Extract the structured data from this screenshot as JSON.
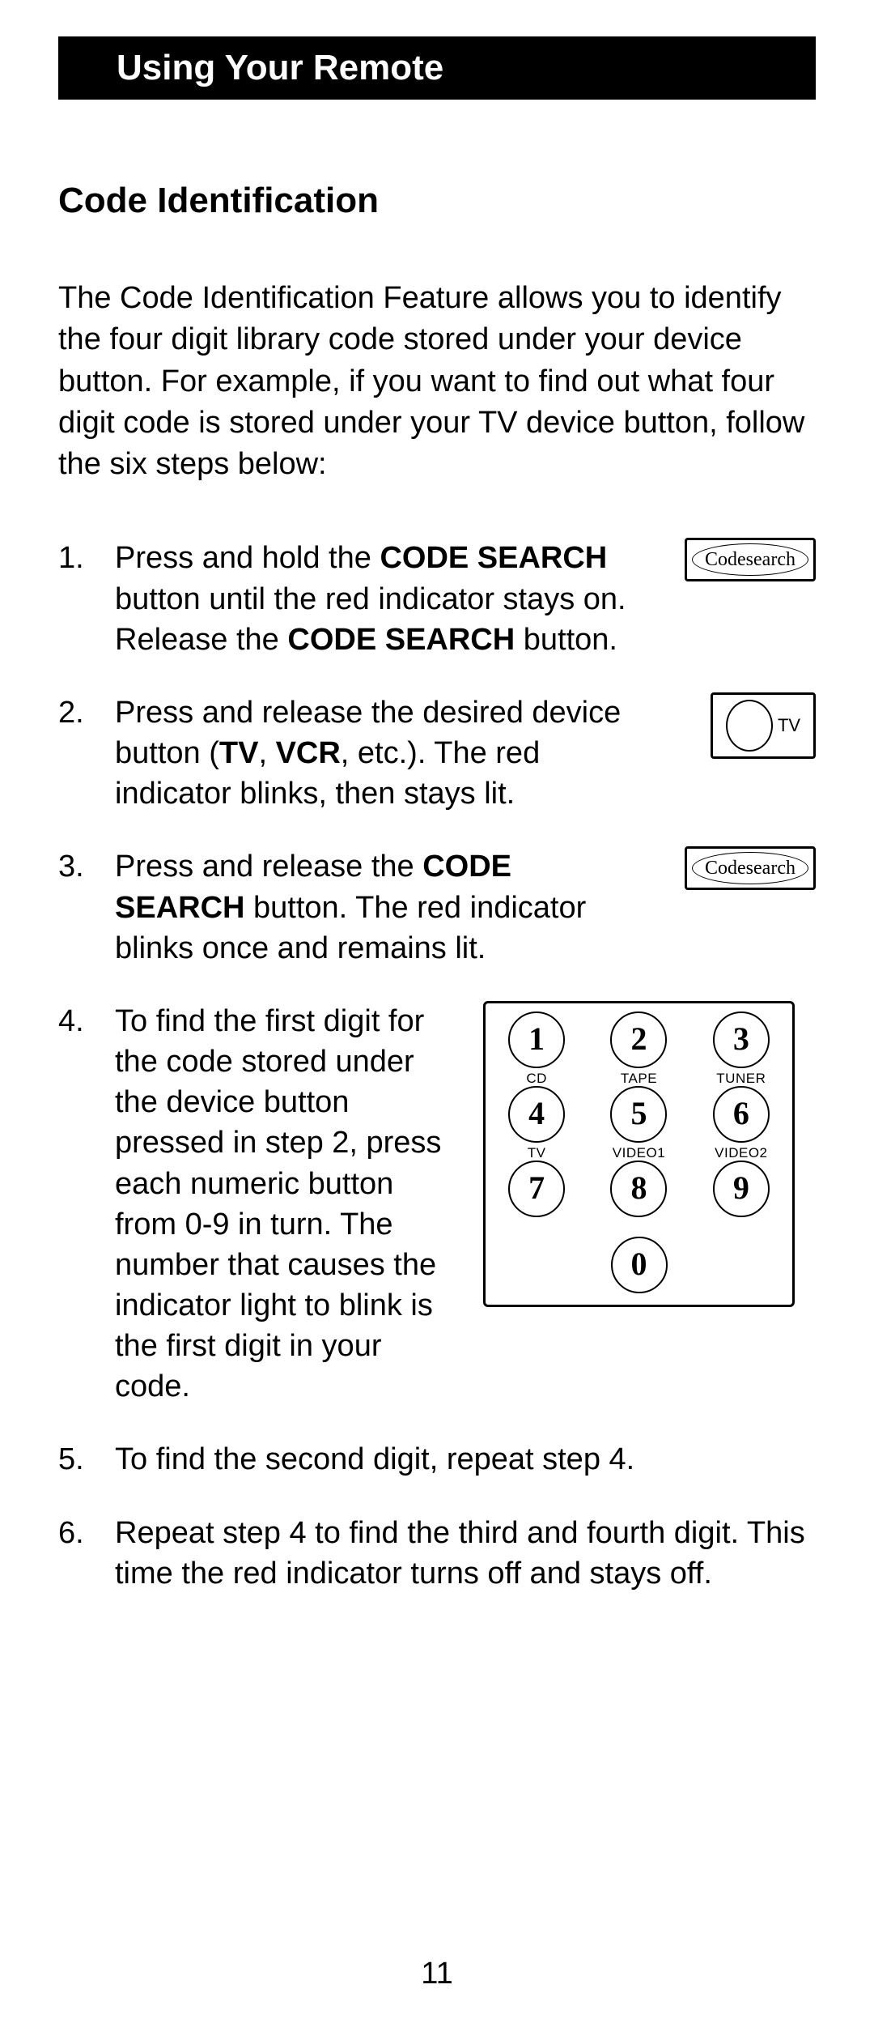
{
  "header": {
    "title": "Using Your Remote"
  },
  "section": {
    "title": "Code Identification"
  },
  "intro": "The Code Identification Feature allows you to identify the four digit library code stored under your device button. For example, if you want to find out what four digit code is stored under your TV device button, follow the six steps below:",
  "steps": {
    "s1": {
      "pre": "Press and hold the ",
      "b1": "CODE SEARCH",
      "mid": " button until the red indicator stays on. Release the ",
      "b2": "CODE SEARCH",
      "post": " button."
    },
    "s2": {
      "pre": "Press and release the desired device button (",
      "b1": "TV",
      "mid1": ", ",
      "b2": "VCR",
      "post": ", etc.). The red indicator blinks, then stays lit."
    },
    "s3": {
      "pre": "Press and release the ",
      "b1": "CODE SEARCH",
      "post": " button. The red indicator blinks once and remains lit."
    },
    "s4": {
      "pre": "To find the first digit for the code stored under the device button pressed in step 2, press each numeric button from ",
      "b1": "0-9",
      "post": " in turn. The number that causes the indicator light to blink is the first digit in your code."
    },
    "s5": "To find the second digit, repeat step 4.",
    "s6": "Repeat step 4 to find the third and fourth digit. This time the red indicator turns off and  stays off."
  },
  "icons": {
    "codesearch_label": "Codesearch",
    "tv_label": "TV"
  },
  "keypad": {
    "keys": [
      {
        "num": "1",
        "sub": "CD"
      },
      {
        "num": "2",
        "sub": "TAPE"
      },
      {
        "num": "3",
        "sub": "TUNER"
      },
      {
        "num": "4",
        "sub": "TV"
      },
      {
        "num": "5",
        "sub": "VIDEO1"
      },
      {
        "num": "6",
        "sub": "VIDEO2"
      },
      {
        "num": "7",
        "sub": ""
      },
      {
        "num": "8",
        "sub": ""
      },
      {
        "num": "9",
        "sub": ""
      }
    ],
    "zero": "0"
  },
  "page_number": "11"
}
